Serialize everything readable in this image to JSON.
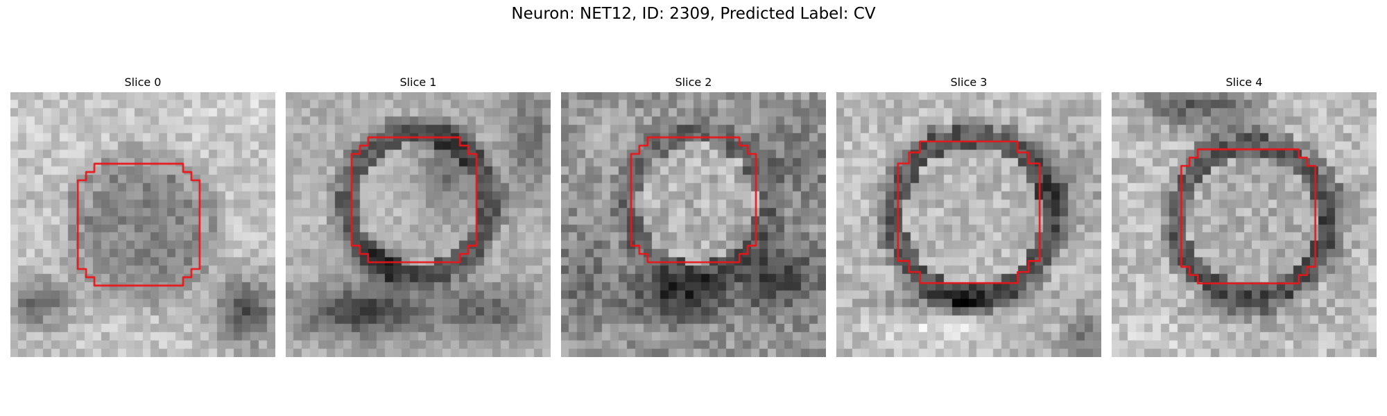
{
  "figure": {
    "title": "Neuron: NET12, ID: 2309, Predicted Label: CV"
  },
  "colors": {
    "contour": "#e8161b",
    "background": "#ffffff"
  },
  "panels": [
    {
      "title": "Slice 0"
    },
    {
      "title": "Slice 1"
    },
    {
      "title": "Slice 2"
    },
    {
      "title": "Slice 3"
    },
    {
      "title": "Slice 4"
    }
  ]
}
